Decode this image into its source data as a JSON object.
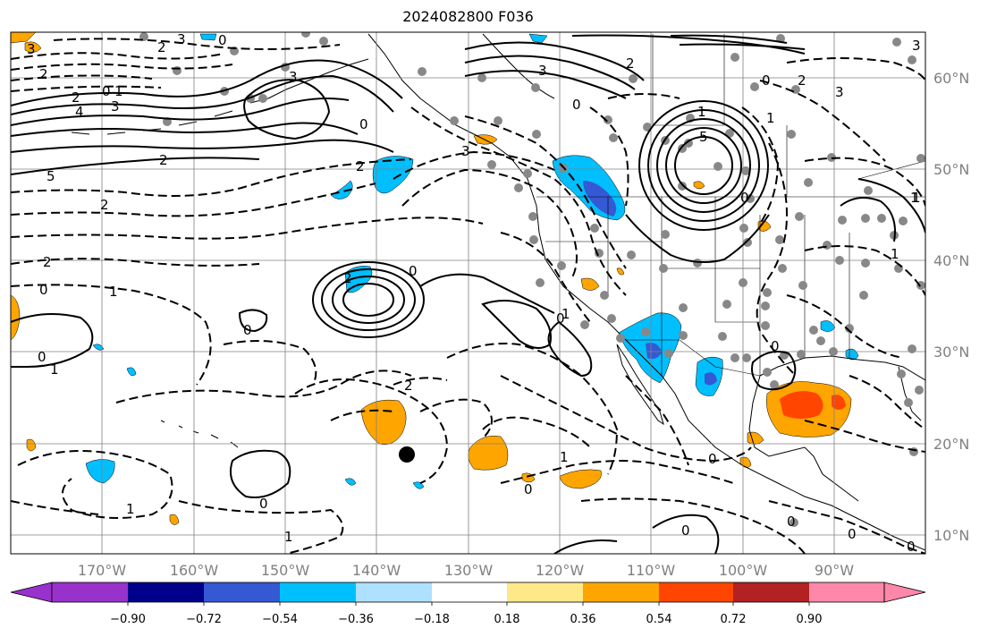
{
  "title": "2024082800 F036",
  "map": {
    "projection": "PlateCarree",
    "extent": {
      "lon_min": -180,
      "lon_max": -80,
      "lat_min": 8,
      "lat_max": 65
    },
    "gridlines": true,
    "lon_ticks": [
      "170°W",
      "160°W",
      "150°W",
      "140°W",
      "130°W",
      "120°W",
      "110°W",
      "100°W",
      "90°W"
    ],
    "lat_ticks": [
      "10°N",
      "20°N",
      "30°N",
      "40°N",
      "50°N",
      "60°N"
    ],
    "contour_labels": [
      "3",
      "2",
      "3",
      "0",
      "2",
      "0",
      "1",
      "3",
      "2",
      "4",
      "3",
      "0",
      "5",
      "2",
      "2",
      "3",
      "0",
      "2",
      "1",
      "3",
      "0",
      "1",
      "5",
      "2",
      "0",
      "3",
      "2",
      "1",
      "2",
      "0",
      "1",
      "0",
      "1",
      "1",
      "0",
      "2",
      "0",
      "0",
      "1",
      "2",
      "0",
      "0",
      "1",
      "0",
      "0",
      "1",
      "0",
      "0",
      "0",
      "0",
      "3",
      "1",
      "1"
    ],
    "markers": {
      "large_black_dot": true,
      "station_dots_color": "#888888"
    }
  },
  "colorbar": {
    "ticks": [
      "−0.90",
      "−0.72",
      "−0.54",
      "−0.36",
      "−0.18",
      "0.18",
      "0.36",
      "0.54",
      "0.72",
      "0.90"
    ],
    "colors": [
      "#9932cc",
      "#00008b",
      "#3558d4",
      "#00bfff",
      "#aee0ff",
      "#ffffff",
      "#ffe888",
      "#ffa500",
      "#ff4500",
      "#b22222",
      "#ff88aa"
    ]
  }
}
